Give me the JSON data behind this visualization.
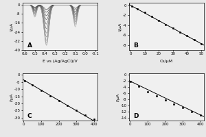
{
  "panel_A": {
    "label": "A",
    "xlabel": "E vs (Ag/AgCl)/V",
    "ylabel": "I/μA",
    "xlim": [
      0.6,
      -0.1
    ],
    "ylim": [
      -40,
      2
    ],
    "yticks": [
      -40,
      -32,
      -24,
      -16,
      -8,
      0
    ],
    "xticks": [
      0.6,
      0.5,
      0.4,
      0.3,
      0.2,
      0.1,
      0.0,
      -0.1
    ],
    "num_curves": 12,
    "peak1_x": 0.5,
    "peak1_sigma": 0.018,
    "peak2_x": 0.385,
    "peak2_sigma": 0.025,
    "peak3_x": 0.1,
    "peak3_sigma": 0.02,
    "peak1_depths": [
      -2.0,
      -2.8,
      -3.6,
      -4.4,
      -5.2,
      -6.0,
      -6.8,
      -7.6,
      -8.4,
      -9.2,
      -10.0,
      -10.8
    ],
    "peak2_depths": [
      -4.0,
      -6.5,
      -9.5,
      -13.0,
      -17.0,
      -21.0,
      -25.0,
      -28.5,
      -31.5,
      -33.5,
      -35.0,
      -36.0
    ],
    "peak3_depths": [
      -3.0,
      -4.5,
      -6.0,
      -7.5,
      -9.0,
      -10.5,
      -12.0,
      -13.5,
      -15.0,
      -16.5,
      -18.0,
      -19.5
    ]
  },
  "panel_B": {
    "label": "B",
    "xlabel": "Cs/μM",
    "ylabel": "I/μA",
    "xlim": [
      -1,
      52
    ],
    "ylim": [
      -9,
      0.5
    ],
    "yticks": [
      -8,
      -6,
      -4,
      -2,
      0
    ],
    "xticks": [
      0,
      10,
      20,
      30,
      40,
      50
    ],
    "x_data": [
      1,
      5,
      10,
      15,
      20,
      25,
      30,
      35,
      40,
      45,
      50
    ],
    "y_data": [
      -0.15,
      -0.75,
      -1.5,
      -2.25,
      -3.05,
      -3.85,
      -4.6,
      -5.4,
      -6.15,
      -6.95,
      -7.75
    ],
    "slope": -0.1545,
    "intercept": -0.01
  },
  "panel_C": {
    "label": "C",
    "xlabel": "",
    "ylabel": "I/μA",
    "xlim": [
      -5,
      420
    ],
    "ylim": [
      -32,
      1
    ],
    "yticks": [
      0,
      -5,
      -10,
      -15,
      -20,
      -25,
      -30
    ],
    "xticks": [
      0,
      100,
      200,
      300,
      400
    ],
    "x_data": [
      5,
      50,
      100,
      150,
      200,
      250,
      300,
      350,
      400
    ],
    "y_data": [
      -4.0,
      -7.0,
      -11.0,
      -14.5,
      -18.0,
      -21.5,
      -25.0,
      -28.0,
      -31.0
    ],
    "slope": -0.072,
    "intercept": -3.5
  },
  "panel_D": {
    "label": "D",
    "xlabel": "",
    "ylabel": "I/μA",
    "xlim": [
      -5,
      420
    ],
    "ylim": [
      -15,
      0.5
    ],
    "yticks": [
      -14,
      -12,
      -10,
      -8,
      -6,
      -4,
      -2,
      0
    ],
    "xticks": [
      0,
      100,
      200,
      300,
      400
    ],
    "x_data": [
      5,
      50,
      100,
      150,
      200,
      250,
      300,
      350,
      400
    ],
    "y_data": [
      -2.2,
      -3.8,
      -5.5,
      -7.0,
      -8.3,
      -9.5,
      -10.8,
      -12.0,
      -13.2
    ],
    "slope": -0.0279,
    "intercept": -2.0
  },
  "line_color": "#000000",
  "marker_color": "#000000",
  "bg_color": "#e8e8e8",
  "panel_bg": "#f0f0f0",
  "fontsize_label": 4.5,
  "fontsize_tick": 4.0,
  "fontsize_panel": 6.5
}
